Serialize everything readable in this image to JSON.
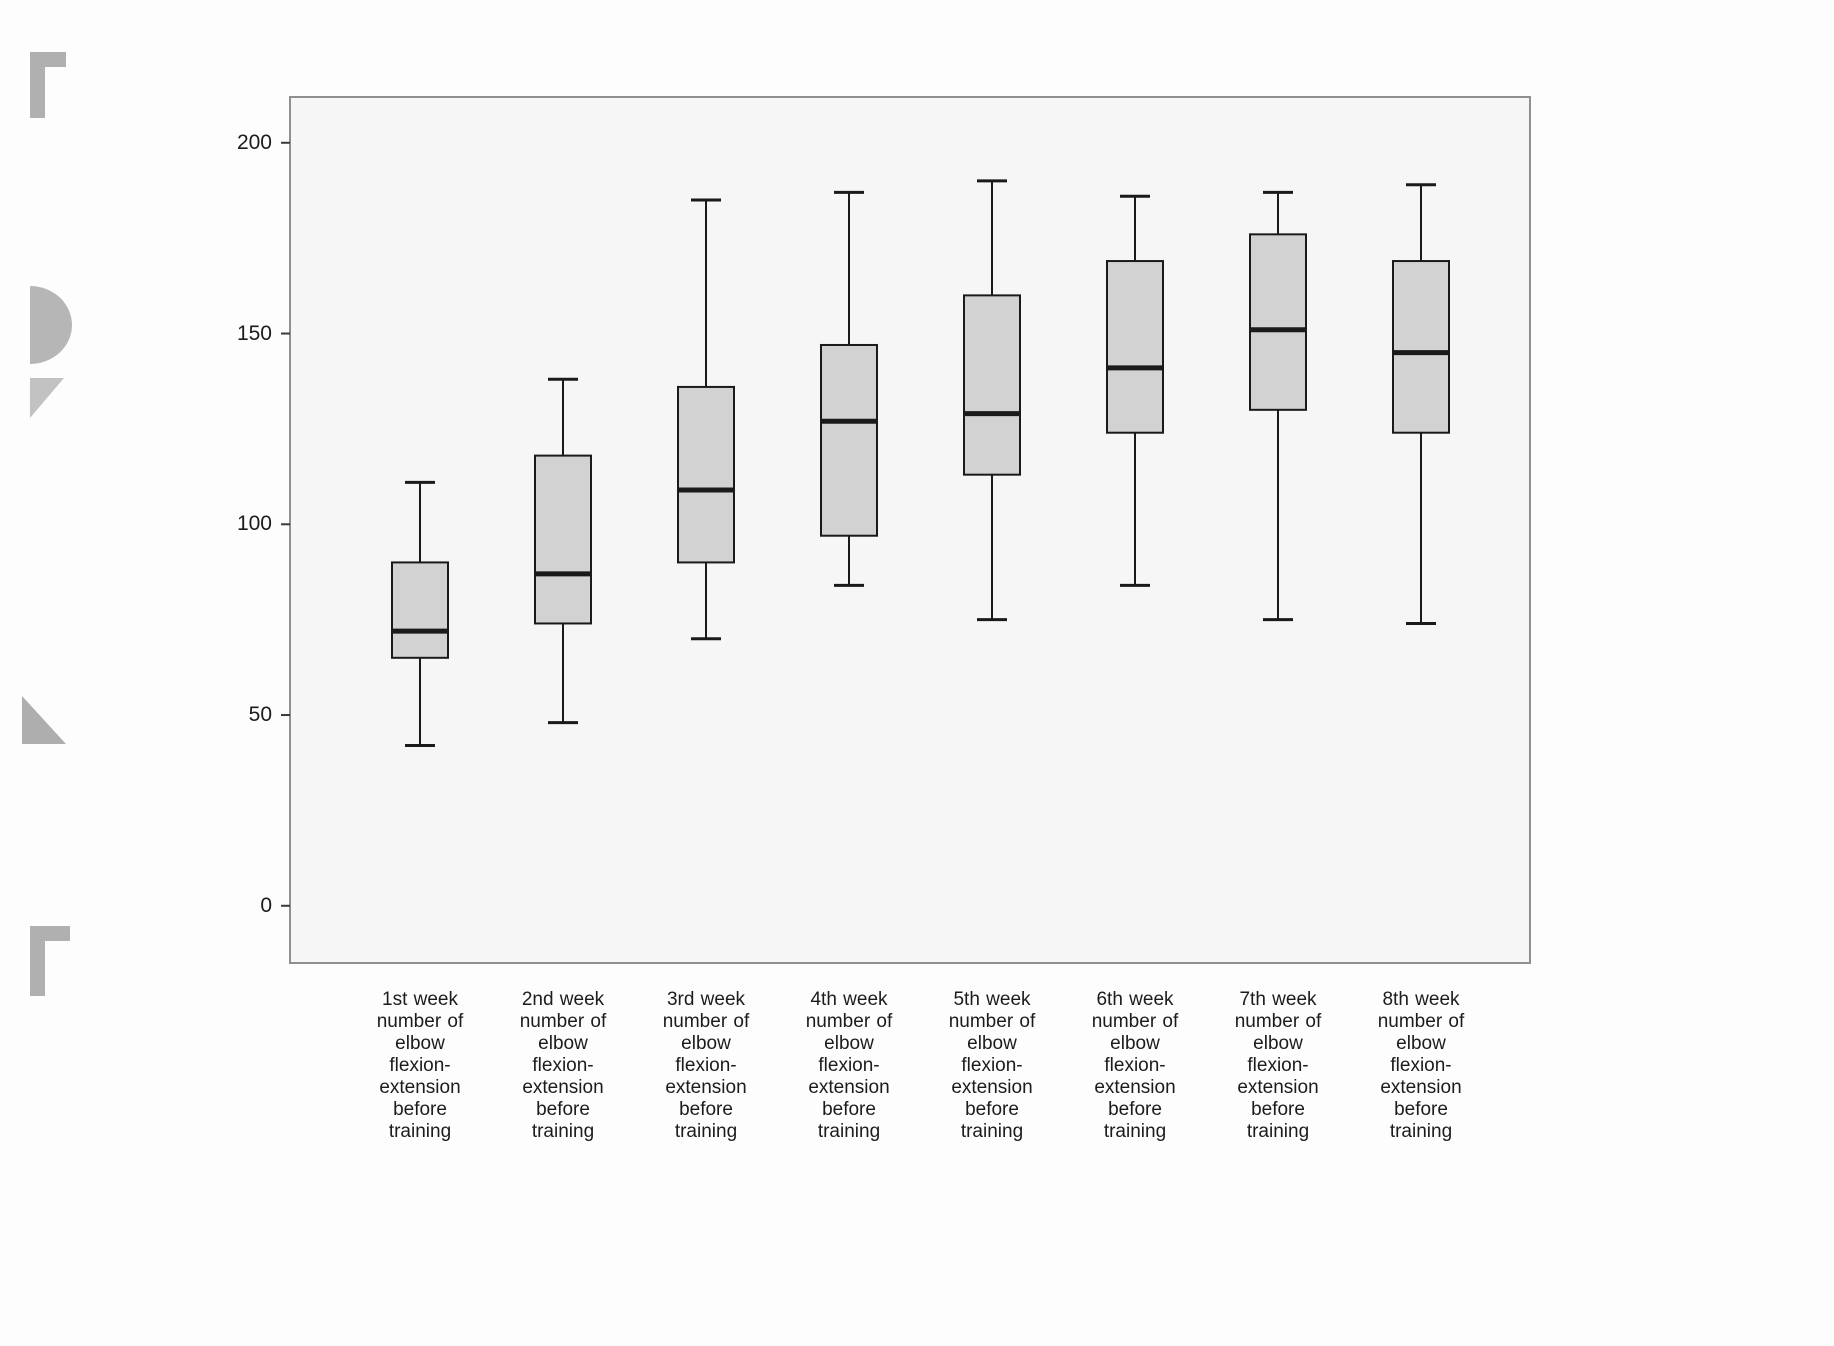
{
  "page": {
    "background": "#fdfdfd"
  },
  "chart_data": {
    "type": "box",
    "title": "",
    "xlabel": "",
    "ylabel": "",
    "grid": false,
    "legend": "none",
    "ylim": [
      -15,
      212
    ],
    "yticks": [
      0,
      50,
      100,
      150,
      200
    ],
    "plot_background": "#f6f6f6",
    "plot_border_color": "#8f8f8f",
    "box_fill": "#d2d2d2",
    "box_stroke": "#1a1a1a",
    "categories": [
      "1st week number of elbow flexion-extension before training",
      "2nd week number of elbow flexion-extension before training",
      "3rd week number of elbow flexion-extension before training",
      "4th week number of elbow flexion-extension before training",
      "5th week number of elbow flexion-extension before training",
      "6th week number of elbow flexion-extension before training",
      "7th week number of elbow flexion-extension before training",
      "8th week number of elbow flexion-extension before training"
    ],
    "series": [
      {
        "category": "1st week",
        "whisker_low": 42,
        "q1": 65,
        "median": 72,
        "q3": 90,
        "whisker_high": 111
      },
      {
        "category": "2nd week",
        "whisker_low": 48,
        "q1": 74,
        "median": 87,
        "q3": 118,
        "whisker_high": 138
      },
      {
        "category": "3rd week",
        "whisker_low": 70,
        "q1": 90,
        "median": 109,
        "q3": 136,
        "whisker_high": 185
      },
      {
        "category": "4th week",
        "whisker_low": 84,
        "q1": 97,
        "median": 127,
        "q3": 147,
        "whisker_high": 187
      },
      {
        "category": "5th week",
        "whisker_low": 75,
        "q1": 113,
        "median": 129,
        "q3": 160,
        "whisker_high": 190
      },
      {
        "category": "6th week",
        "whisker_low": 84,
        "q1": 124,
        "median": 141,
        "q3": 169,
        "whisker_high": 186
      },
      {
        "category": "7th week",
        "whisker_low": 75,
        "q1": 130,
        "median": 151,
        "q3": 176,
        "whisker_high": 187
      },
      {
        "category": "8th week",
        "whisker_low": 74,
        "q1": 124,
        "median": 145,
        "q3": 169,
        "whisker_high": 189
      }
    ]
  }
}
